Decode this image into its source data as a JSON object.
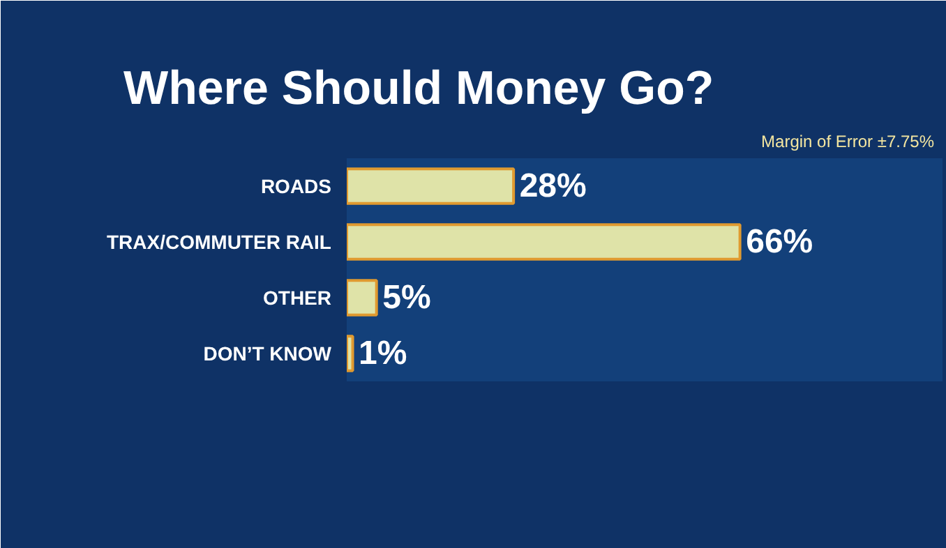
{
  "chart_data": {
    "type": "bar",
    "orientation": "horizontal",
    "title": "Where Should Money Go?",
    "categories": [
      "ROADS",
      "TRAX/COMMUTER RAIL",
      "OTHER",
      "DON’T KNOW"
    ],
    "values": [
      28,
      66,
      5,
      1
    ],
    "value_labels": [
      "28%",
      "66%",
      "5%",
      "1%"
    ],
    "color": "#dfe3a8",
    "xlim": [
      0,
      100
    ],
    "tick_labels": "y",
    "grid": false,
    "annotations": [
      "Margin of Error ±7.75%"
    ]
  }
}
